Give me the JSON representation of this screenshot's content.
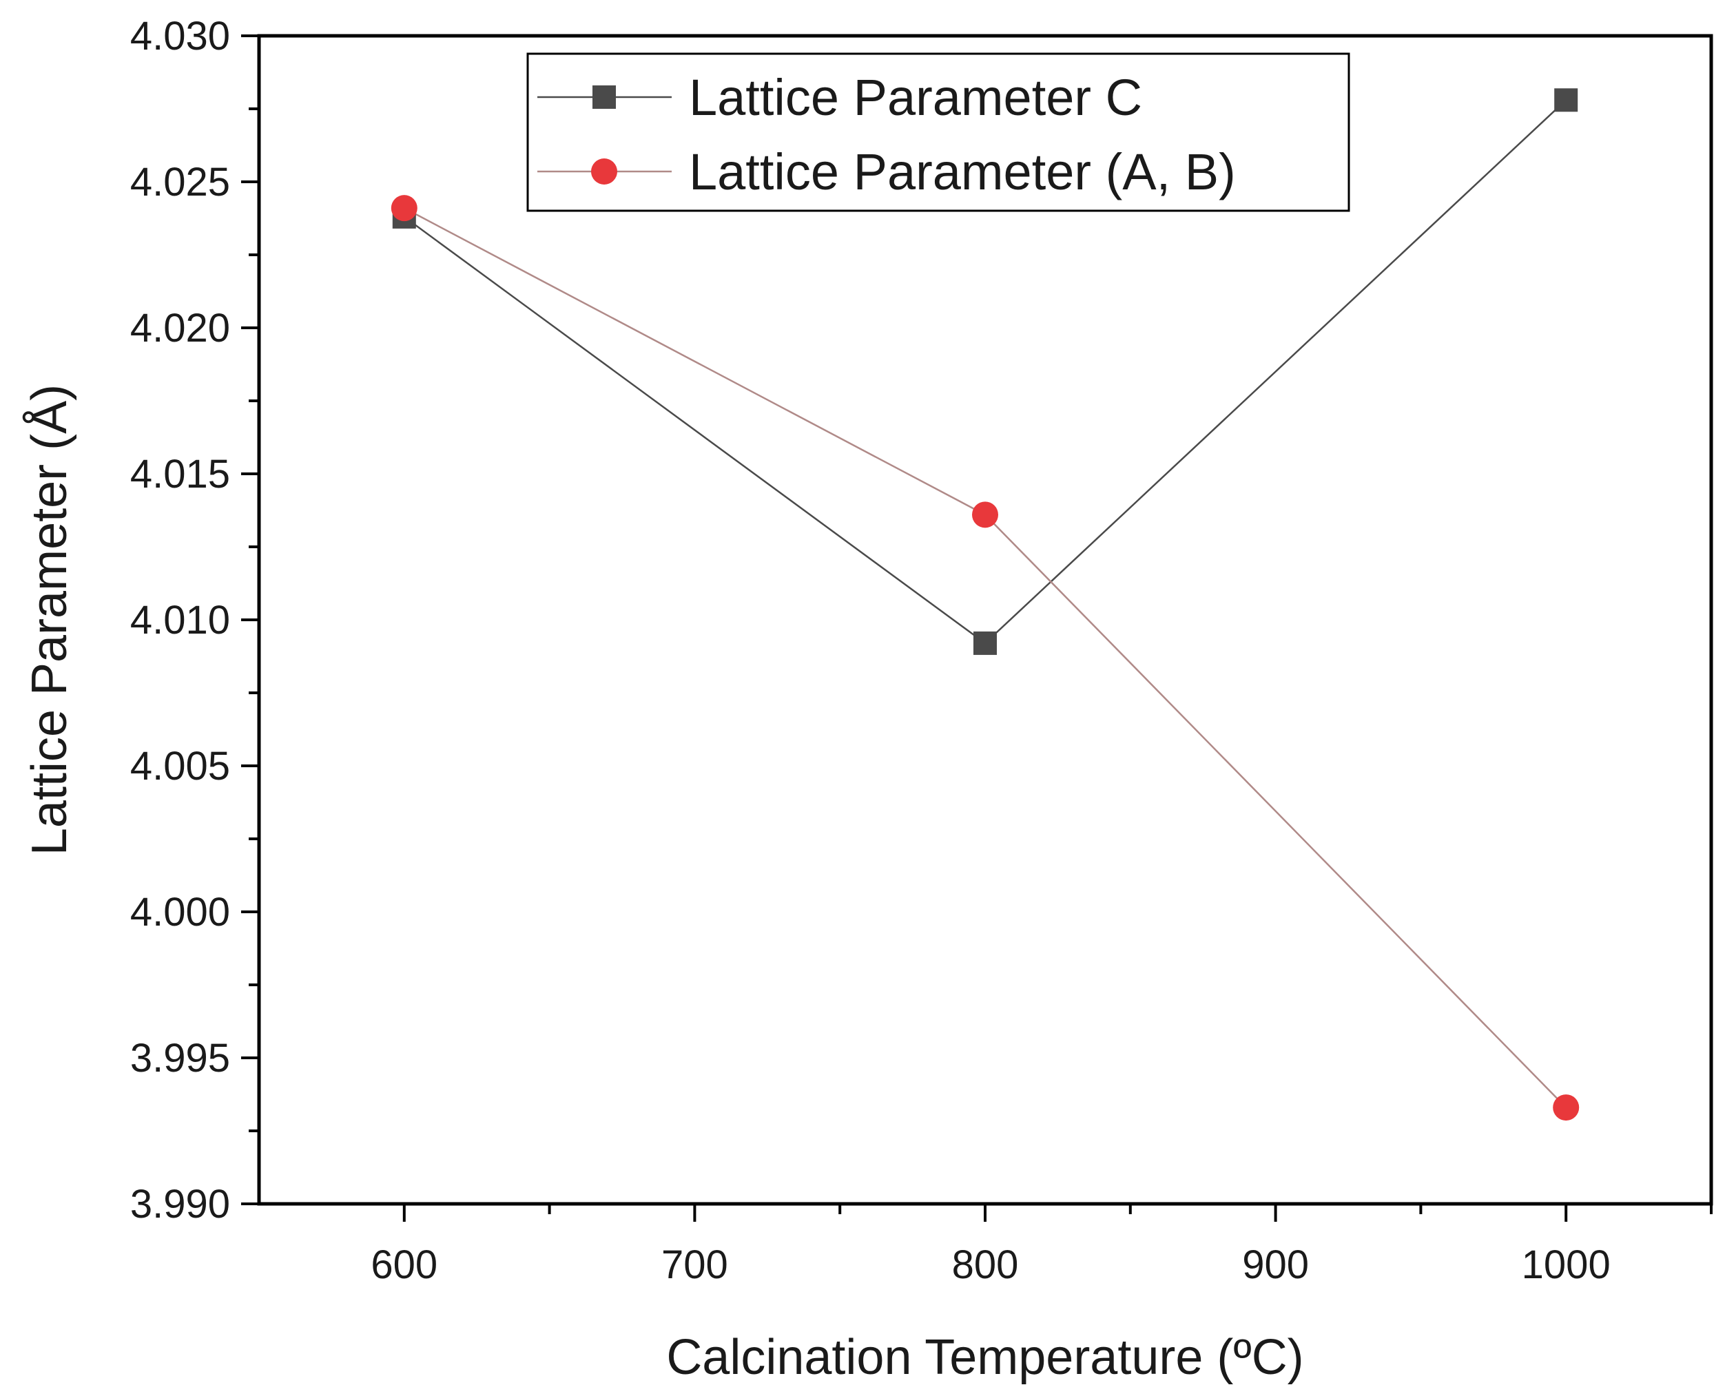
{
  "chart_data": {
    "type": "line",
    "title": "",
    "xlabel": "Calcination Temperature (ºC)",
    "ylabel": "Lattice Parameter (Å)",
    "xlim": [
      550,
      1050
    ],
    "ylim": [
      3.99,
      4.03
    ],
    "x_ticks": [
      600,
      700,
      800,
      900,
      1000
    ],
    "x_tick_labels": [
      "600",
      "700",
      "800",
      "900",
      "1000"
    ],
    "y_ticks": [
      3.99,
      3.995,
      4.0,
      4.005,
      4.01,
      4.015,
      4.02,
      4.025,
      4.03
    ],
    "y_tick_labels": [
      "3.990",
      "3.995",
      "4.000",
      "4.005",
      "4.010",
      "4.015",
      "4.020",
      "4.025",
      "4.030"
    ],
    "legend_position": "top-center",
    "series": [
      {
        "name": "Lattice Parameter C",
        "marker": "square",
        "color": "#4a4a4a",
        "x": [
          600,
          800,
          1000
        ],
        "values": [
          4.0238,
          4.0092,
          4.0278
        ]
      },
      {
        "name": "Lattice Parameter (A, B)",
        "marker": "circle",
        "color": "#e8383b",
        "line_color": "#b08a88",
        "x": [
          600,
          800,
          1000
        ],
        "values": [
          4.0241,
          4.0136,
          3.9933
        ]
      }
    ]
  }
}
